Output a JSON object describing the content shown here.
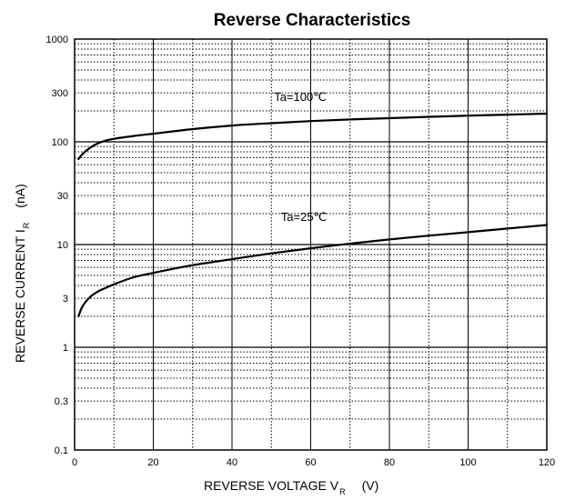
{
  "chart_data": {
    "type": "line",
    "title": "Reverse Characteristics",
    "xlabel": {
      "main": "REVERSE VOLTAGE  V",
      "sub": "R",
      "unit": "(V)"
    },
    "ylabel": {
      "main": "REVERSE CURRENT  I",
      "sub": "R",
      "unit": "(nA)"
    },
    "xlim": [
      0,
      120
    ],
    "ylim": [
      0.1,
      1000
    ],
    "yscale": "log",
    "grid": true,
    "xticks": [
      0,
      20,
      40,
      60,
      80,
      100,
      120
    ],
    "xtick_labels": [
      "0",
      "20",
      "40",
      "60",
      "80",
      "100",
      "120"
    ],
    "yticks": [
      0.1,
      0.3,
      1,
      3,
      10,
      30,
      100,
      300,
      1000
    ],
    "ytick_labels": [
      "0.1",
      "0.3",
      "1",
      "3",
      "10",
      "30",
      "100",
      "300",
      "1000"
    ],
    "series": [
      {
        "name": "Ta=100℃",
        "x": [
          1,
          2,
          4,
          6,
          8,
          10,
          15,
          20,
          30,
          40,
          50,
          60,
          70,
          80,
          90,
          100,
          110,
          120
        ],
        "y": [
          68,
          76,
          88,
          97,
          103,
          107,
          114,
          120,
          133,
          144,
          152,
          159,
          165,
          170,
          175,
          180,
          184,
          188
        ]
      },
      {
        "name": "Ta=25℃",
        "x": [
          1,
          2,
          4,
          6,
          8,
          10,
          15,
          20,
          30,
          40,
          50,
          60,
          70,
          80,
          90,
          100,
          110,
          120
        ],
        "y": [
          2.0,
          2.5,
          3.1,
          3.5,
          3.8,
          4.1,
          4.8,
          5.3,
          6.3,
          7.2,
          8.2,
          9.2,
          10.2,
          11.2,
          12.2,
          13.2,
          14.3,
          15.5
        ]
      }
    ]
  }
}
